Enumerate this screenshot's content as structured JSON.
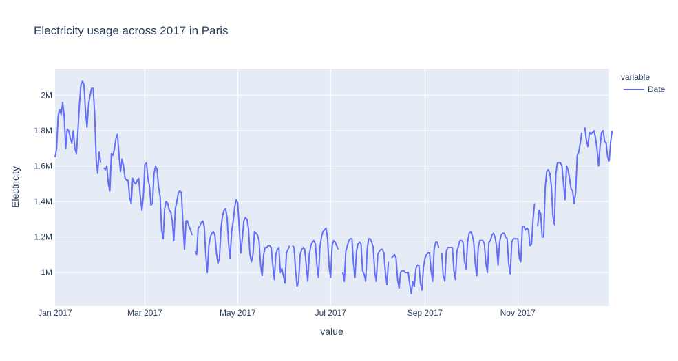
{
  "chart_data": {
    "type": "line",
    "title": "Electricity usage across 2017 in Paris",
    "xlabel": "value",
    "ylabel": "Electricity",
    "x_start": "2017-01-01",
    "x_end": "2017-12-31",
    "xlim": [
      "2017-01-01",
      "2017-12-31"
    ],
    "ylim": [
      810000,
      2150000
    ],
    "x_ticks": [
      {
        "date": "2017-01-01",
        "label": "Jan 2017"
      },
      {
        "date": "2017-03-01",
        "label": "Mar 2017"
      },
      {
        "date": "2017-05-01",
        "label": "May 2017"
      },
      {
        "date": "2017-07-01",
        "label": "Jul 2017"
      },
      {
        "date": "2017-09-01",
        "label": "Sep 2017"
      },
      {
        "date": "2017-11-01",
        "label": "Nov 2017"
      }
    ],
    "y_ticks": [
      {
        "value": 1000000,
        "label": "1M"
      },
      {
        "value": 1200000,
        "label": "1.2M"
      },
      {
        "value": 1400000,
        "label": "1.4M"
      },
      {
        "value": 1600000,
        "label": "1.6M"
      },
      {
        "value": 1800000,
        "label": "1.8M"
      },
      {
        "value": 2000000,
        "label": "2M"
      }
    ],
    "grid": true,
    "legend": {
      "title": "variable",
      "placement": "top-right"
    },
    "series": [
      {
        "name": "Date",
        "color": "#636efa",
        "values": [
          1650000,
          1700000,
          1880000,
          1920000,
          1890000,
          1960000,
          1880000,
          1700000,
          1810000,
          1800000,
          1760000,
          1730000,
          1800000,
          1700000,
          1670000,
          1800000,
          1950000,
          2060000,
          2080000,
          2060000,
          1910000,
          1820000,
          1950000,
          2000000,
          2040000,
          2040000,
          1900000,
          1640000,
          1560000,
          1680000,
          1620000,
          null,
          1590000,
          1580000,
          1600000,
          1500000,
          1460000,
          1670000,
          1660000,
          1700000,
          1760000,
          1780000,
          1660000,
          1570000,
          1640000,
          1600000,
          1530000,
          1520000,
          1520000,
          1420000,
          1390000,
          1530000,
          1510000,
          1500000,
          1520000,
          1530000,
          1430000,
          1350000,
          1430000,
          1610000,
          1620000,
          1530000,
          1490000,
          1380000,
          1390000,
          1560000,
          1600000,
          1580000,
          1480000,
          1430000,
          1240000,
          1190000,
          1360000,
          1400000,
          1390000,
          1350000,
          1340000,
          1290000,
          1180000,
          1360000,
          1400000,
          1450000,
          1460000,
          1450000,
          1270000,
          1130000,
          1290000,
          1290000,
          1260000,
          1240000,
          1210000,
          null,
          1120000,
          1100000,
          1250000,
          1260000,
          1280000,
          1290000,
          1260000,
          1100000,
          1000000,
          1150000,
          1200000,
          1220000,
          1230000,
          1210000,
          1110000,
          1050000,
          1080000,
          1250000,
          1320000,
          1350000,
          1360000,
          1310000,
          1160000,
          1080000,
          1230000,
          1290000,
          1370000,
          1410000,
          1390000,
          1250000,
          1110000,
          1190000,
          1290000,
          1310000,
          1300000,
          1250000,
          1100000,
          1060000,
          1100000,
          1230000,
          1220000,
          1210000,
          1180000,
          1040000,
          980000,
          1100000,
          1140000,
          1140000,
          1150000,
          1150000,
          1140000,
          1040000,
          960000,
          1100000,
          1130000,
          1140000,
          1000000,
          1020000,
          980000,
          940000,
          1110000,
          1130000,
          1150000,
          null,
          1150000,
          1140000,
          1010000,
          920000,
          950000,
          1100000,
          1130000,
          1140000,
          1130000,
          1040000,
          950000,
          1100000,
          1150000,
          1170000,
          1180000,
          1160000,
          1040000,
          970000,
          1140000,
          1200000,
          1230000,
          1240000,
          1250000,
          1190000,
          1030000,
          970000,
          1150000,
          1180000,
          1170000,
          1150000,
          1130000,
          null,
          null,
          1000000,
          950000,
          1120000,
          1150000,
          1180000,
          1190000,
          1190000,
          1050000,
          970000,
          1120000,
          1160000,
          1170000,
          1160000,
          1010000,
          990000,
          950000,
          1130000,
          1190000,
          1190000,
          1170000,
          1140000,
          1000000,
          950000,
          1100000,
          1120000,
          1130000,
          1130000,
          1110000,
          1000000,
          930000,
          1060000,
          null,
          1080000,
          1090000,
          1100000,
          1080000,
          960000,
          910000,
          1000000,
          1010000,
          1010000,
          1000000,
          1000000,
          1000000,
          930000,
          880000,
          950000,
          920000,
          1020000,
          1040000,
          1040000,
          940000,
          900000,
          1030000,
          1080000,
          1100000,
          1110000,
          1110000,
          1010000,
          950000,
          1130000,
          1170000,
          1170000,
          1140000,
          null,
          1110000,
          980000,
          950000,
          1120000,
          1140000,
          1140000,
          1140000,
          1140000,
          1010000,
          960000,
          1120000,
          1150000,
          1180000,
          1180000,
          1170000,
          1060000,
          1020000,
          1170000,
          1220000,
          1230000,
          1210000,
          1170000,
          1050000,
          980000,
          1140000,
          1180000,
          1180000,
          1180000,
          1160000,
          1050000,
          1000000,
          1170000,
          1180000,
          1210000,
          1220000,
          1200000,
          1150000,
          1040000,
          1170000,
          1210000,
          1220000,
          1220000,
          1200000,
          1190000,
          1050000,
          990000,
          1170000,
          1190000,
          1190000,
          1190000,
          1190000,
          1080000,
          1060000,
          1260000,
          1260000,
          1240000,
          1250000,
          1240000,
          1150000,
          1160000,
          1300000,
          1390000,
          null,
          1260000,
          1350000,
          1330000,
          1200000,
          1200000,
          1480000,
          1570000,
          1580000,
          1560000,
          1490000,
          1320000,
          1270000,
          1560000,
          1620000,
          1620000,
          1620000,
          1600000,
          1500000,
          1410000,
          1600000,
          1580000,
          1530000,
          1470000,
          1460000,
          1390000,
          1450000,
          1660000,
          1680000,
          1730000,
          1790000,
          null,
          1820000,
          1750000,
          1710000,
          1790000,
          1780000,
          1790000,
          1800000,
          1760000,
          1700000,
          1600000,
          1710000,
          1790000,
          1800000,
          1740000,
          1730000,
          1650000,
          1630000,
          1740000,
          1800000
        ]
      }
    ]
  }
}
